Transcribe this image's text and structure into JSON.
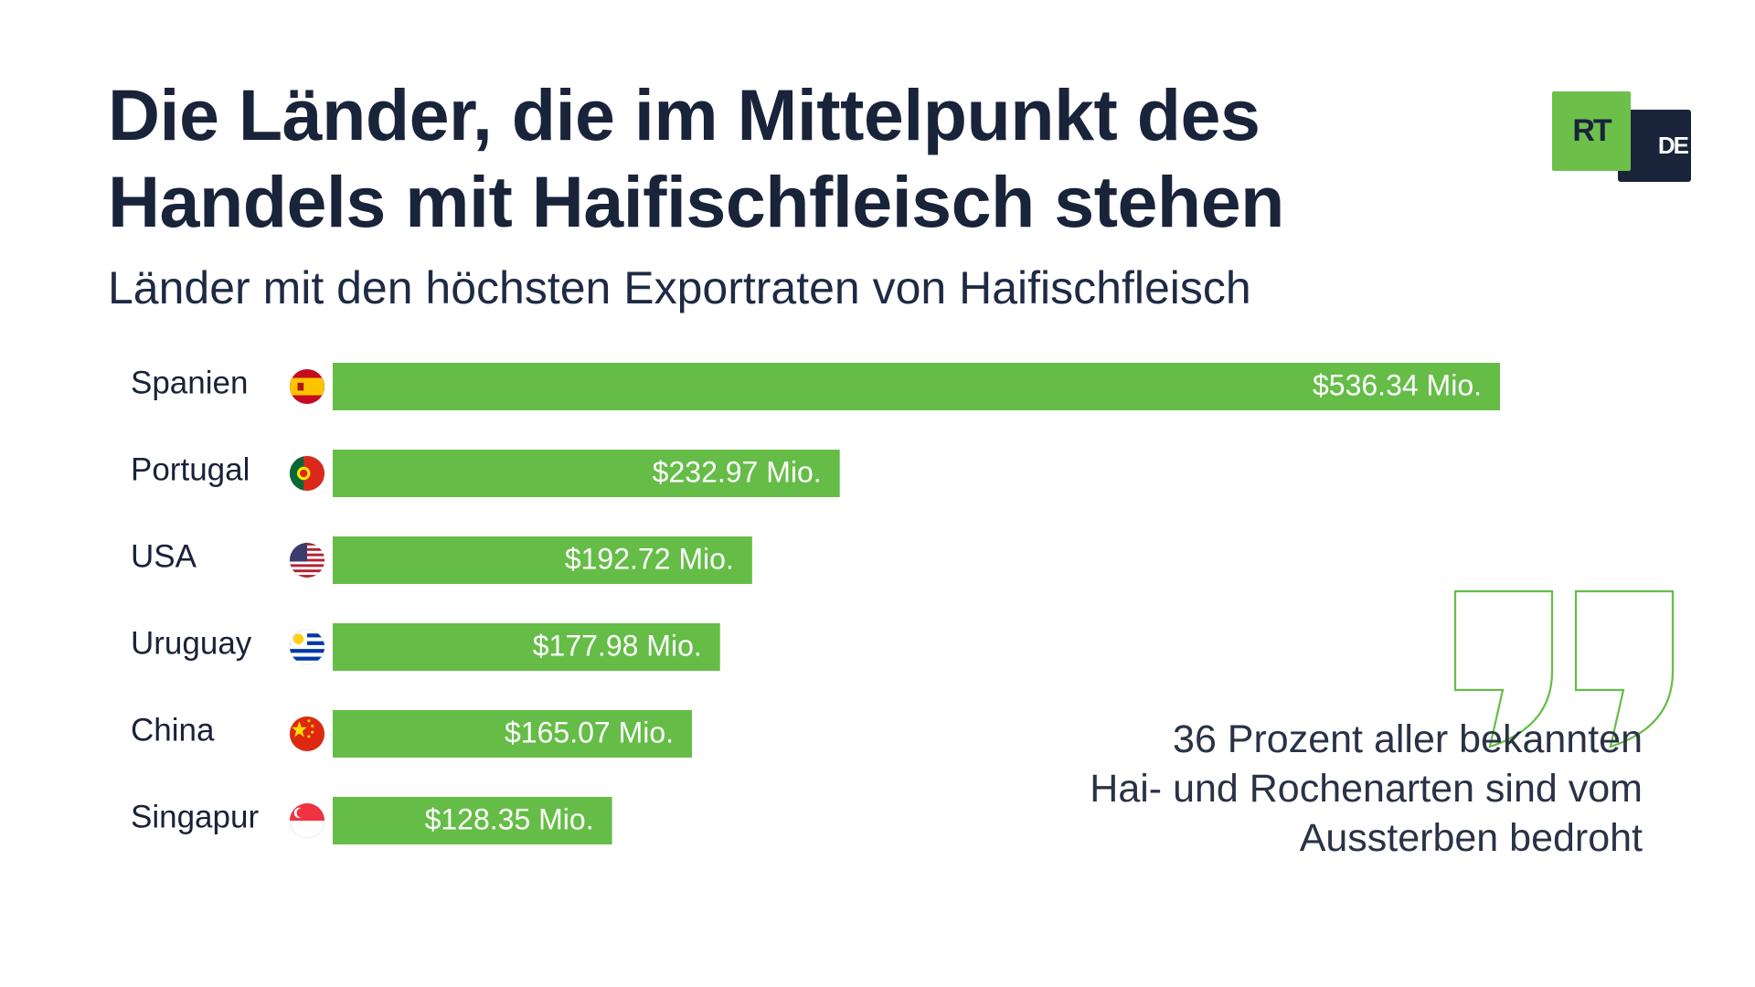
{
  "header": {
    "title_line1": "Die Länder, die im Mittelpunkt des",
    "title_line2": "Handels mit Haifischfleisch stehen",
    "subtitle": "Länder mit den höchsten Exportraten von Haifischfleisch"
  },
  "logo": {
    "rt": "RT",
    "de": "DE"
  },
  "colors": {
    "bar": "#65bd47",
    "title": "#19233a",
    "logo_green": "#6cc04a",
    "logo_navy": "#19233a"
  },
  "chart_data": {
    "type": "bar",
    "orientation": "horizontal",
    "title": "Die Länder, die im Mittelpunkt des Handels mit Haifischfleisch stehen",
    "subtitle": "Länder mit den höchsten Exportraten von Haifischfleisch",
    "categories": [
      "Spanien",
      "Portugal",
      "USA",
      "Uruguay",
      "China",
      "Singapur"
    ],
    "values": [
      536.34,
      232.97,
      192.72,
      177.98,
      165.07,
      128.35
    ],
    "value_labels": [
      "$536.34 Mio.",
      "$232.97 Mio.",
      "$192.72 Mio.",
      "$177.98 Mio.",
      "$165.07 Mio.",
      "$128.35 Mio."
    ],
    "flags": [
      "spain-flag-icon",
      "portugal-flag-icon",
      "usa-flag-icon",
      "uruguay-flag-icon",
      "china-flag-icon",
      "singapore-flag-icon"
    ],
    "xlim": [
      0,
      536.34
    ],
    "grid": false,
    "legend": "none"
  },
  "note": {
    "icon": "quote-icon",
    "line1": "36 Prozent aller bekannten",
    "line2": "Hai- und Rochenarten sind vom",
    "line3": "Aussterben bedroht"
  }
}
